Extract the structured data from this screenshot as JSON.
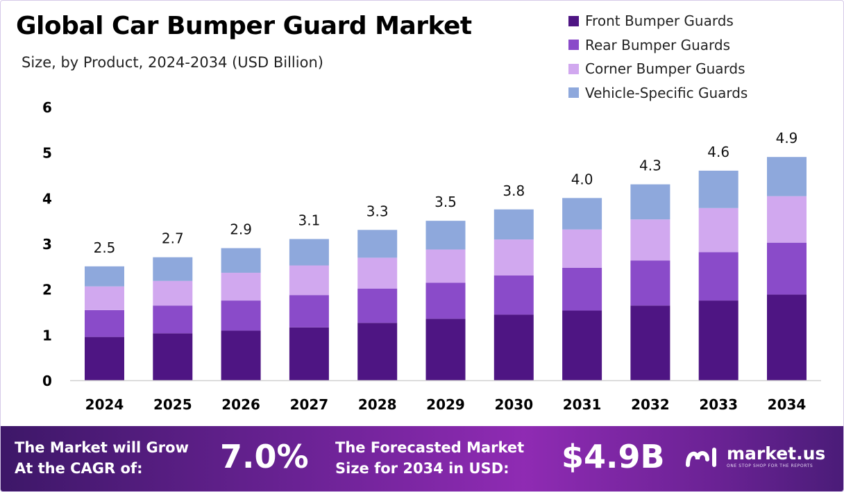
{
  "header": {
    "title": "Global Car Bumper Guard Market",
    "subtitle": "Size, by Product, 2024-2034 (USD Billion)"
  },
  "chart_data": {
    "type": "bar",
    "stacked": true,
    "categories": [
      "2024",
      "2025",
      "2026",
      "2027",
      "2028",
      "2029",
      "2030",
      "2031",
      "2032",
      "2033",
      "2034"
    ],
    "series": [
      {
        "name": "Front Bumper Guards",
        "color": "#4e1583",
        "values": [
          0.95,
          1.03,
          1.09,
          1.16,
          1.26,
          1.35,
          1.44,
          1.53,
          1.64,
          1.75,
          1.88
        ]
      },
      {
        "name": "Rear Bumper Guards",
        "color": "#8a4bc9",
        "values": [
          0.59,
          0.61,
          0.66,
          0.71,
          0.75,
          0.79,
          0.86,
          0.94,
          0.99,
          1.06,
          1.14
        ]
      },
      {
        "name": "Corner Bumper Guards",
        "color": "#d1a8ef",
        "values": [
          0.52,
          0.54,
          0.61,
          0.65,
          0.68,
          0.73,
          0.79,
          0.84,
          0.9,
          0.97,
          1.02
        ]
      },
      {
        "name": "Vehicle-Specific Guards",
        "color": "#8ea8dc",
        "values": [
          0.44,
          0.52,
          0.54,
          0.58,
          0.61,
          0.63,
          0.66,
          0.69,
          0.77,
          0.82,
          0.86
        ]
      }
    ],
    "totals": [
      "2.5",
      "2.7",
      "2.9",
      "3.1",
      "3.3",
      "3.5",
      "3.8",
      "4.0",
      "4.3",
      "4.6",
      "4.9"
    ],
    "yticks": [
      "0",
      "1",
      "2",
      "3",
      "4",
      "5",
      "6"
    ],
    "ylim": [
      0,
      6
    ],
    "grid": false,
    "legend_position": "top-right"
  },
  "banner": {
    "cagr_label_line1": "The Market will Grow",
    "cagr_label_line2": "At the CAGR of:",
    "cagr_value": "7.0%",
    "forecast_label_line1": "The Forecasted Market",
    "forecast_label_line2": "Size for 2034 in USD:",
    "forecast_value": "$4.9B",
    "brand_name": "market.us",
    "brand_tagline": "ONE STOP SHOP FOR THE REPORTS",
    "brand_icon": "market-us-logo-icon"
  }
}
